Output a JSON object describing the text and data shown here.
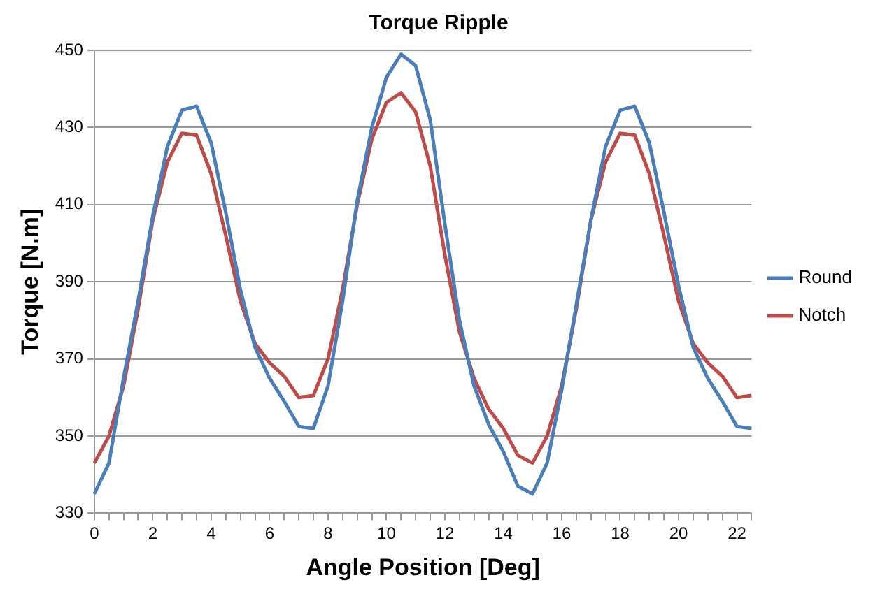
{
  "chart_data": {
    "type": "line",
    "title": "Torque Ripple",
    "xlabel": "Angle Position [Deg]",
    "ylabel": "Torque [N.m]",
    "categories": [
      "0",
      null,
      null,
      null,
      "2",
      null,
      null,
      null,
      "4",
      null,
      null,
      null,
      "6",
      null,
      null,
      null,
      "8",
      null,
      null,
      null,
      "10",
      null,
      null,
      null,
      "12",
      null,
      null,
      null,
      "14",
      null,
      null,
      null,
      "16",
      null,
      null,
      null,
      "18",
      null,
      null,
      null,
      "20",
      null,
      null,
      null,
      "22",
      null
    ],
    "series": [
      {
        "name": "Round",
        "color": "#4a7ebb",
        "values": [
          335,
          343,
          365,
          385,
          407,
          425,
          434.5,
          435.5,
          426,
          408,
          388,
          373,
          365,
          359,
          352.5,
          352,
          363,
          385,
          411,
          430,
          443,
          449,
          446,
          432,
          405,
          380,
          363,
          353,
          346,
          337,
          335,
          343,
          362,
          384,
          406,
          425,
          434.5,
          435.5,
          426,
          408,
          389,
          373,
          365,
          359,
          352.5,
          352
        ]
      },
      {
        "name": "Notch",
        "color": "#be4b48",
        "values": [
          343,
          350,
          363,
          383,
          406,
          421,
          428.5,
          428,
          418,
          402,
          385,
          374,
          369,
          365.5,
          360,
          360.5,
          370,
          388,
          410,
          427,
          436.5,
          439,
          434,
          420,
          397,
          377,
          365,
          357,
          352,
          345,
          343,
          350,
          363,
          383,
          406,
          421,
          428.5,
          428,
          418,
          402,
          385,
          374,
          369,
          365.5,
          360,
          360.5
        ]
      }
    ],
    "ylim": [
      330,
      450
    ],
    "yticks": [
      330,
      350,
      370,
      390,
      410,
      430,
      450
    ],
    "grid": "y",
    "legend": "right",
    "marker": "none",
    "line_style": "solid"
  }
}
